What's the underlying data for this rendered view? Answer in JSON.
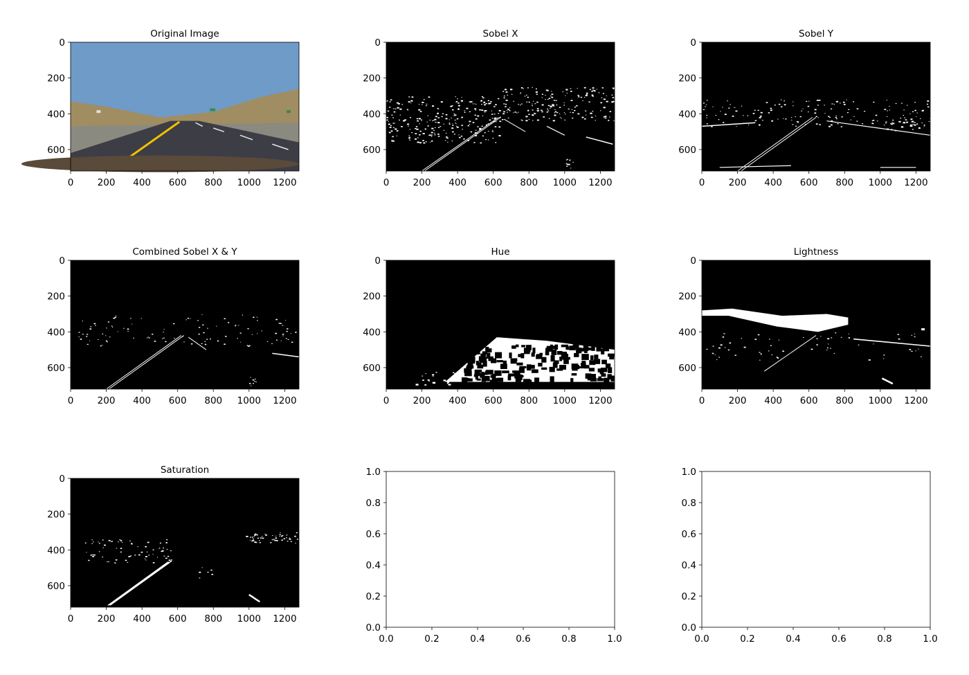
{
  "chart_data": [
    {
      "type": "image",
      "title": "Original Image",
      "image_extent": [
        1280,
        720
      ],
      "xticks": [
        0,
        200,
        400,
        600,
        800,
        1000,
        1200
      ],
      "yticks": [
        0,
        200,
        400,
        600
      ],
      "render": "road-photo",
      "colors": {
        "sky": "#6f9bc8",
        "road": "#3d3d45",
        "hills": "#a08d62",
        "lane_yellow": "#f2c300"
      }
    },
    {
      "type": "image",
      "title": "Sobel X",
      "image_extent": [
        1280,
        720
      ],
      "xticks": [
        0,
        200,
        400,
        600,
        800,
        1000,
        1200
      ],
      "yticks": [
        0,
        200,
        400,
        600
      ],
      "render": "edges-dense"
    },
    {
      "type": "image",
      "title": "Sobel Y",
      "image_extent": [
        1280,
        720
      ],
      "xticks": [
        0,
        200,
        400,
        600,
        800,
        1000,
        1200
      ],
      "yticks": [
        0,
        200,
        400,
        600
      ],
      "render": "edges-horizontal"
    },
    {
      "type": "image",
      "title": "Combined Sobel X & Y",
      "image_extent": [
        1280,
        720
      ],
      "xticks": [
        0,
        200,
        400,
        600,
        800,
        1000,
        1200
      ],
      "yticks": [
        0,
        200,
        400,
        600
      ],
      "render": "edges-sparse"
    },
    {
      "type": "image",
      "title": "Hue",
      "image_extent": [
        1280,
        720
      ],
      "xticks": [
        0,
        200,
        400,
        600,
        800,
        1000,
        1200
      ],
      "yticks": [
        0,
        200,
        400,
        600
      ],
      "render": "hue-mask"
    },
    {
      "type": "image",
      "title": "Lightness",
      "image_extent": [
        1280,
        720
      ],
      "xticks": [
        0,
        200,
        400,
        600,
        800,
        1000,
        1200
      ],
      "yticks": [
        0,
        200,
        400,
        600
      ],
      "render": "lightness-mask"
    },
    {
      "type": "image",
      "title": "Saturation",
      "image_extent": [
        1280,
        720
      ],
      "xticks": [
        0,
        200,
        400,
        600,
        800,
        1000,
        1200
      ],
      "yticks": [
        0,
        200,
        400,
        600
      ],
      "render": "saturation-mask"
    },
    {
      "type": "empty",
      "title": "",
      "xlim": [
        0,
        1
      ],
      "ylim": [
        0,
        1
      ],
      "xticks": [
        "0.0",
        "0.2",
        "0.4",
        "0.6",
        "0.8",
        "1.0"
      ],
      "yticks": [
        "0.0",
        "0.2",
        "0.4",
        "0.6",
        "0.8",
        "1.0"
      ]
    },
    {
      "type": "empty",
      "title": "",
      "xlim": [
        0,
        1
      ],
      "ylim": [
        0,
        1
      ],
      "xticks": [
        "0.0",
        "0.2",
        "0.4",
        "0.6",
        "0.8",
        "1.0"
      ],
      "yticks": [
        "0.0",
        "0.2",
        "0.4",
        "0.6",
        "0.8",
        "1.0"
      ]
    }
  ]
}
